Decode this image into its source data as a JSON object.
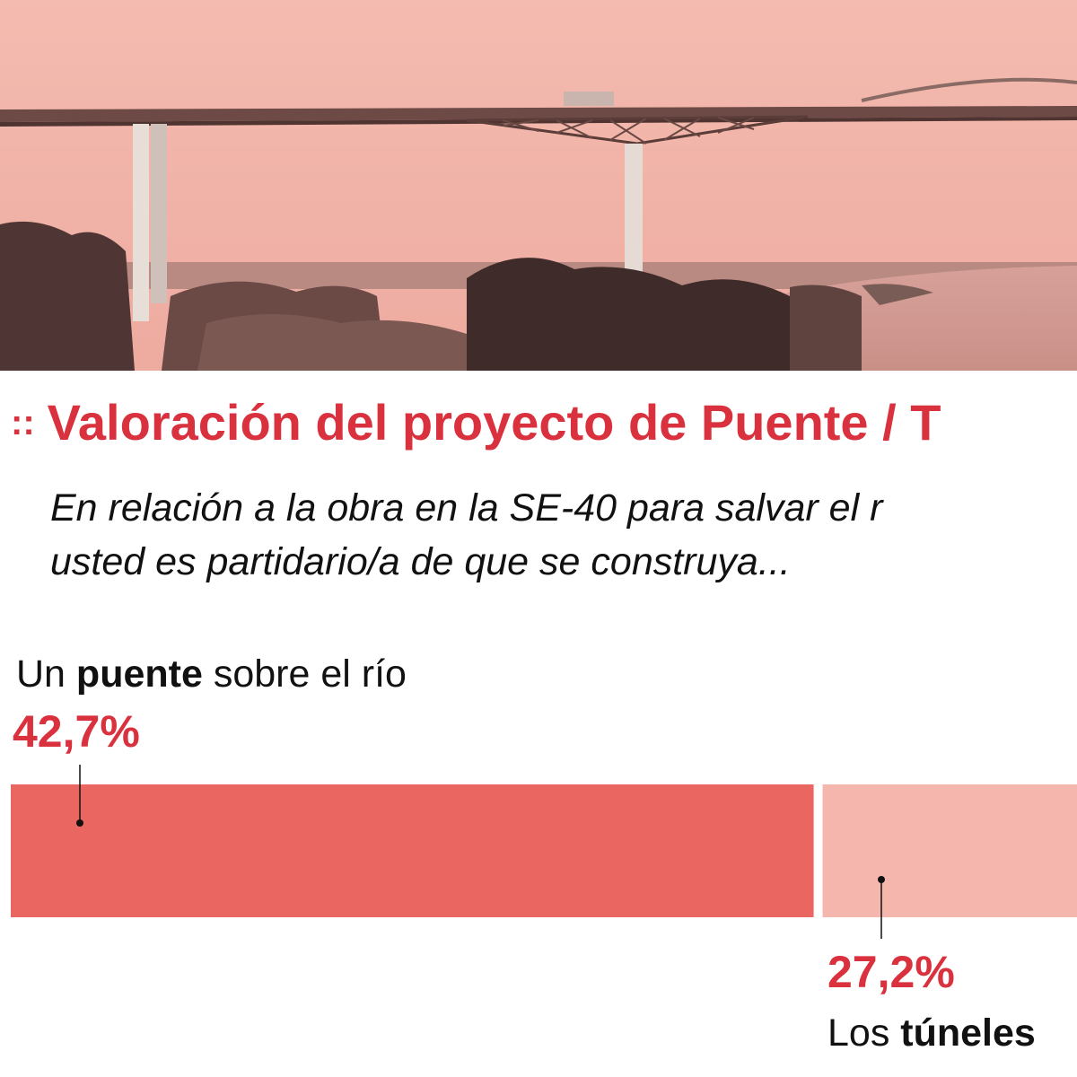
{
  "header": {
    "marker": "::",
    "title": "Valoración del proyecto de Puente / T",
    "subtitle_line1": "En relación a la obra en la SE-40 para salvar el r",
    "subtitle_line2": "usted es partidario/a de que se construya..."
  },
  "colors": {
    "accent": "#d9313d",
    "bar_primary": "#ea6761",
    "bar_secondary": "#f5b7ad",
    "banner_tint": "#f1b3a8"
  },
  "chart_data": {
    "type": "bar",
    "orientation": "horizontal-stacked",
    "categories": [
      "Un puente sobre el río",
      "Los túneles"
    ],
    "values": [
      42.7,
      27.2
    ],
    "value_labels": [
      "42,7%",
      "27,2%"
    ],
    "labels": [
      {
        "pre": "Un ",
        "bold": "puente",
        "post": " sobre el río"
      },
      {
        "pre": "Los ",
        "bold": "túneles",
        "post": ""
      }
    ],
    "unit": "%",
    "xlim": [
      0,
      100
    ]
  }
}
